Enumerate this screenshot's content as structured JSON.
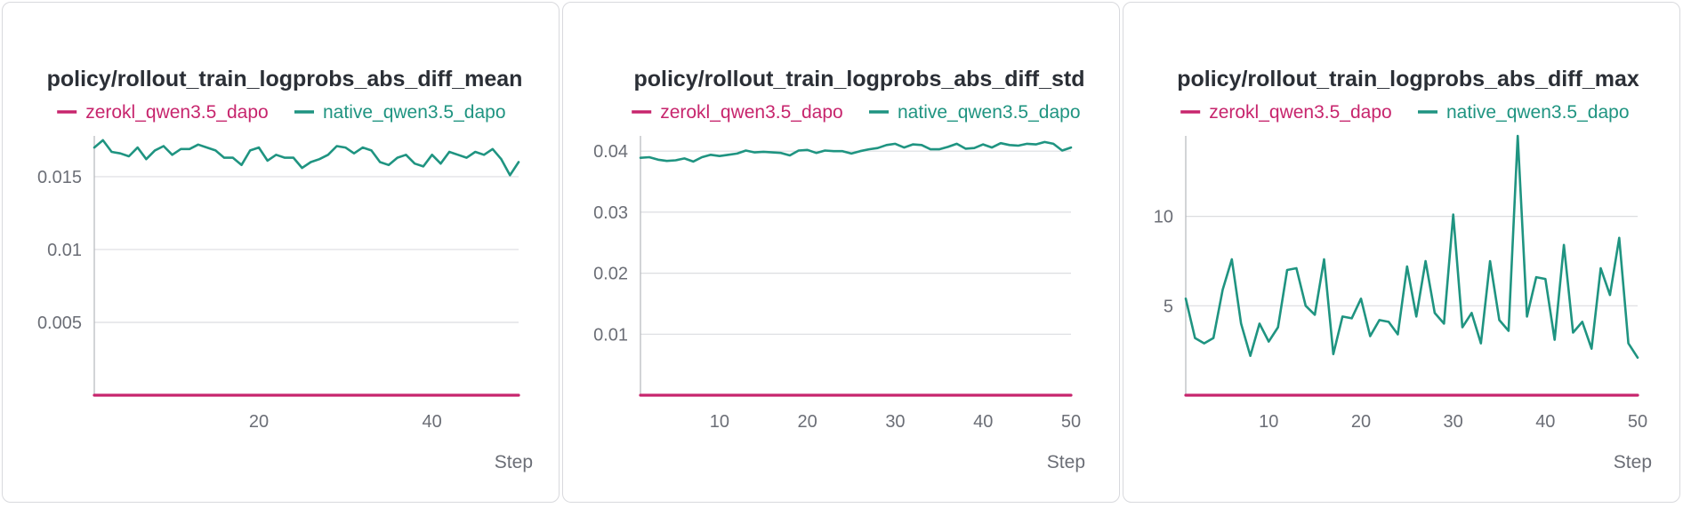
{
  "colors": {
    "zerokl": "#c7256d",
    "native": "#1f9481",
    "grid": "#dcdde0",
    "axis": "#b5b7bc"
  },
  "charts": [
    {
      "title": "policy/rollout_train_logprobs_abs_diff_mean",
      "legend": [
        "zerokl_qwen3.5_dapo",
        "native_qwen3.5_dapo"
      ],
      "xlabel": "Step",
      "xlim": [
        1,
        50
      ],
      "ylim": [
        0,
        0.0178
      ],
      "xticks": [
        20,
        40
      ],
      "yticks": [
        0.005,
        0.01,
        0.015
      ],
      "ytick_labels": [
        "0.005",
        "0.01",
        "0.015"
      ]
    },
    {
      "title": "policy/rollout_train_logprobs_abs_diff_std",
      "legend": [
        "zerokl_qwen3.5_dapo",
        "native_qwen3.5_dapo"
      ],
      "xlabel": "Step",
      "xlim": [
        1,
        50
      ],
      "ylim": [
        0,
        0.0425
      ],
      "xticks": [
        10,
        20,
        30,
        40,
        50
      ],
      "yticks": [
        0.01,
        0.02,
        0.03,
        0.04
      ],
      "ytick_labels": [
        "0.01",
        "0.02",
        "0.03",
        "0.04"
      ]
    },
    {
      "title": "policy/rollout_train_logprobs_abs_diff_max",
      "legend": [
        "zerokl_qwen3.5_dapo",
        "native_qwen3.5_dapo"
      ],
      "xlabel": "Step",
      "xlim": [
        1,
        50
      ],
      "ylim": [
        0,
        14.5
      ],
      "xticks": [
        10,
        20,
        30,
        40,
        50
      ],
      "yticks": [
        5,
        10
      ],
      "ytick_labels": [
        "5",
        "10"
      ]
    }
  ],
  "chart_data": [
    {
      "type": "line",
      "title": "policy/rollout_train_logprobs_abs_diff_mean",
      "xlabel": "Step",
      "x": [
        1,
        2,
        3,
        4,
        5,
        6,
        7,
        8,
        9,
        10,
        11,
        12,
        13,
        14,
        15,
        16,
        17,
        18,
        19,
        20,
        21,
        22,
        23,
        24,
        25,
        26,
        27,
        28,
        29,
        30,
        31,
        32,
        33,
        34,
        35,
        36,
        37,
        38,
        39,
        40,
        41,
        42,
        43,
        44,
        45,
        46,
        47,
        48,
        49,
        50
      ],
      "series": [
        {
          "name": "zerokl_qwen3.5_dapo",
          "values": [
            0,
            0,
            0,
            0,
            0,
            0,
            0,
            0,
            0,
            0,
            0,
            0,
            0,
            0,
            0,
            0,
            0,
            0,
            0,
            0,
            0,
            0,
            0,
            0,
            0,
            0,
            0,
            0,
            0,
            0,
            0,
            0,
            0,
            0,
            0,
            0,
            0,
            0,
            0,
            0,
            0,
            0,
            0,
            0,
            0,
            0,
            0,
            0,
            0,
            0
          ]
        },
        {
          "name": "native_qwen3.5_dapo",
          "values": [
            0.017,
            0.0175,
            0.0167,
            0.0166,
            0.0164,
            0.017,
            0.0162,
            0.0168,
            0.0171,
            0.0165,
            0.0169,
            0.0169,
            0.0172,
            0.017,
            0.0168,
            0.0163,
            0.0163,
            0.0158,
            0.0168,
            0.017,
            0.0161,
            0.0165,
            0.0163,
            0.0163,
            0.0156,
            0.016,
            0.0162,
            0.0165,
            0.0171,
            0.017,
            0.0166,
            0.017,
            0.0168,
            0.016,
            0.0158,
            0.0163,
            0.0165,
            0.0159,
            0.0157,
            0.0165,
            0.0159,
            0.0167,
            0.0165,
            0.0163,
            0.0167,
            0.0165,
            0.0169,
            0.0162,
            0.0151,
            0.016
          ]
        }
      ],
      "ylim": [
        0,
        0.0178
      ]
    },
    {
      "type": "line",
      "title": "policy/rollout_train_logprobs_abs_diff_std",
      "xlabel": "Step",
      "x": [
        1,
        2,
        3,
        4,
        5,
        6,
        7,
        8,
        9,
        10,
        11,
        12,
        13,
        14,
        15,
        16,
        17,
        18,
        19,
        20,
        21,
        22,
        23,
        24,
        25,
        26,
        27,
        28,
        29,
        30,
        31,
        32,
        33,
        34,
        35,
        36,
        37,
        38,
        39,
        40,
        41,
        42,
        43,
        44,
        45,
        46,
        47,
        48,
        49,
        50
      ],
      "series": [
        {
          "name": "zerokl_qwen3.5_dapo",
          "values": [
            0,
            0,
            0,
            0,
            0,
            0,
            0,
            0,
            0,
            0,
            0,
            0,
            0,
            0,
            0,
            0,
            0,
            0,
            0,
            0,
            0,
            0,
            0,
            0,
            0,
            0,
            0,
            0,
            0,
            0,
            0,
            0,
            0,
            0,
            0,
            0,
            0,
            0,
            0,
            0,
            0,
            0,
            0,
            0,
            0,
            0,
            0,
            0,
            0,
            0
          ]
        },
        {
          "name": "native_qwen3.5_dapo",
          "values": [
            0.0389,
            0.039,
            0.0386,
            0.0384,
            0.0385,
            0.0388,
            0.0383,
            0.039,
            0.0394,
            0.0392,
            0.0394,
            0.0396,
            0.0401,
            0.0398,
            0.0399,
            0.0398,
            0.0397,
            0.0393,
            0.0401,
            0.0402,
            0.0397,
            0.0401,
            0.04,
            0.04,
            0.0396,
            0.04,
            0.0403,
            0.0405,
            0.041,
            0.0412,
            0.0406,
            0.0411,
            0.041,
            0.0403,
            0.0403,
            0.0407,
            0.0412,
            0.0404,
            0.0405,
            0.0411,
            0.0406,
            0.0413,
            0.041,
            0.0409,
            0.0412,
            0.0411,
            0.0415,
            0.0412,
            0.0401,
            0.0406
          ]
        }
      ],
      "ylim": [
        0,
        0.0425
      ]
    },
    {
      "type": "line",
      "title": "policy/rollout_train_logprobs_abs_diff_max",
      "xlabel": "Step",
      "x": [
        1,
        2,
        3,
        4,
        5,
        6,
        7,
        8,
        9,
        10,
        11,
        12,
        13,
        14,
        15,
        16,
        17,
        18,
        19,
        20,
        21,
        22,
        23,
        24,
        25,
        26,
        27,
        28,
        29,
        30,
        31,
        32,
        33,
        34,
        35,
        36,
        37,
        38,
        39,
        40,
        41,
        42,
        43,
        44,
        45,
        46,
        47,
        48,
        49,
        50
      ],
      "series": [
        {
          "name": "zerokl_qwen3.5_dapo",
          "values": [
            0,
            0,
            0,
            0,
            0,
            0,
            0,
            0,
            0,
            0,
            0,
            0,
            0,
            0,
            0,
            0,
            0,
            0,
            0,
            0,
            0,
            0,
            0,
            0,
            0,
            0,
            0,
            0,
            0,
            0,
            0,
            0,
            0,
            0,
            0,
            0,
            0,
            0,
            0,
            0,
            0,
            0,
            0,
            0,
            0,
            0,
            0,
            0,
            0,
            0
          ]
        },
        {
          "name": "native_qwen3.5_dapo",
          "values": [
            5.4,
            3.2,
            2.9,
            3.2,
            5.9,
            7.6,
            4.0,
            2.2,
            4.0,
            3.0,
            3.8,
            7.0,
            7.1,
            5.0,
            4.5,
            7.6,
            2.3,
            4.4,
            4.3,
            5.4,
            3.3,
            4.2,
            4.1,
            3.4,
            7.2,
            4.4,
            7.5,
            4.6,
            4.0,
            10.1,
            3.8,
            4.6,
            2.9,
            7.5,
            4.2,
            3.6,
            14.5,
            4.4,
            6.6,
            6.5,
            3.1,
            8.4,
            3.5,
            4.1,
            2.6,
            7.1,
            5.6,
            8.8,
            2.9,
            2.1
          ]
        }
      ],
      "ylim": [
        0,
        14.5
      ]
    }
  ]
}
